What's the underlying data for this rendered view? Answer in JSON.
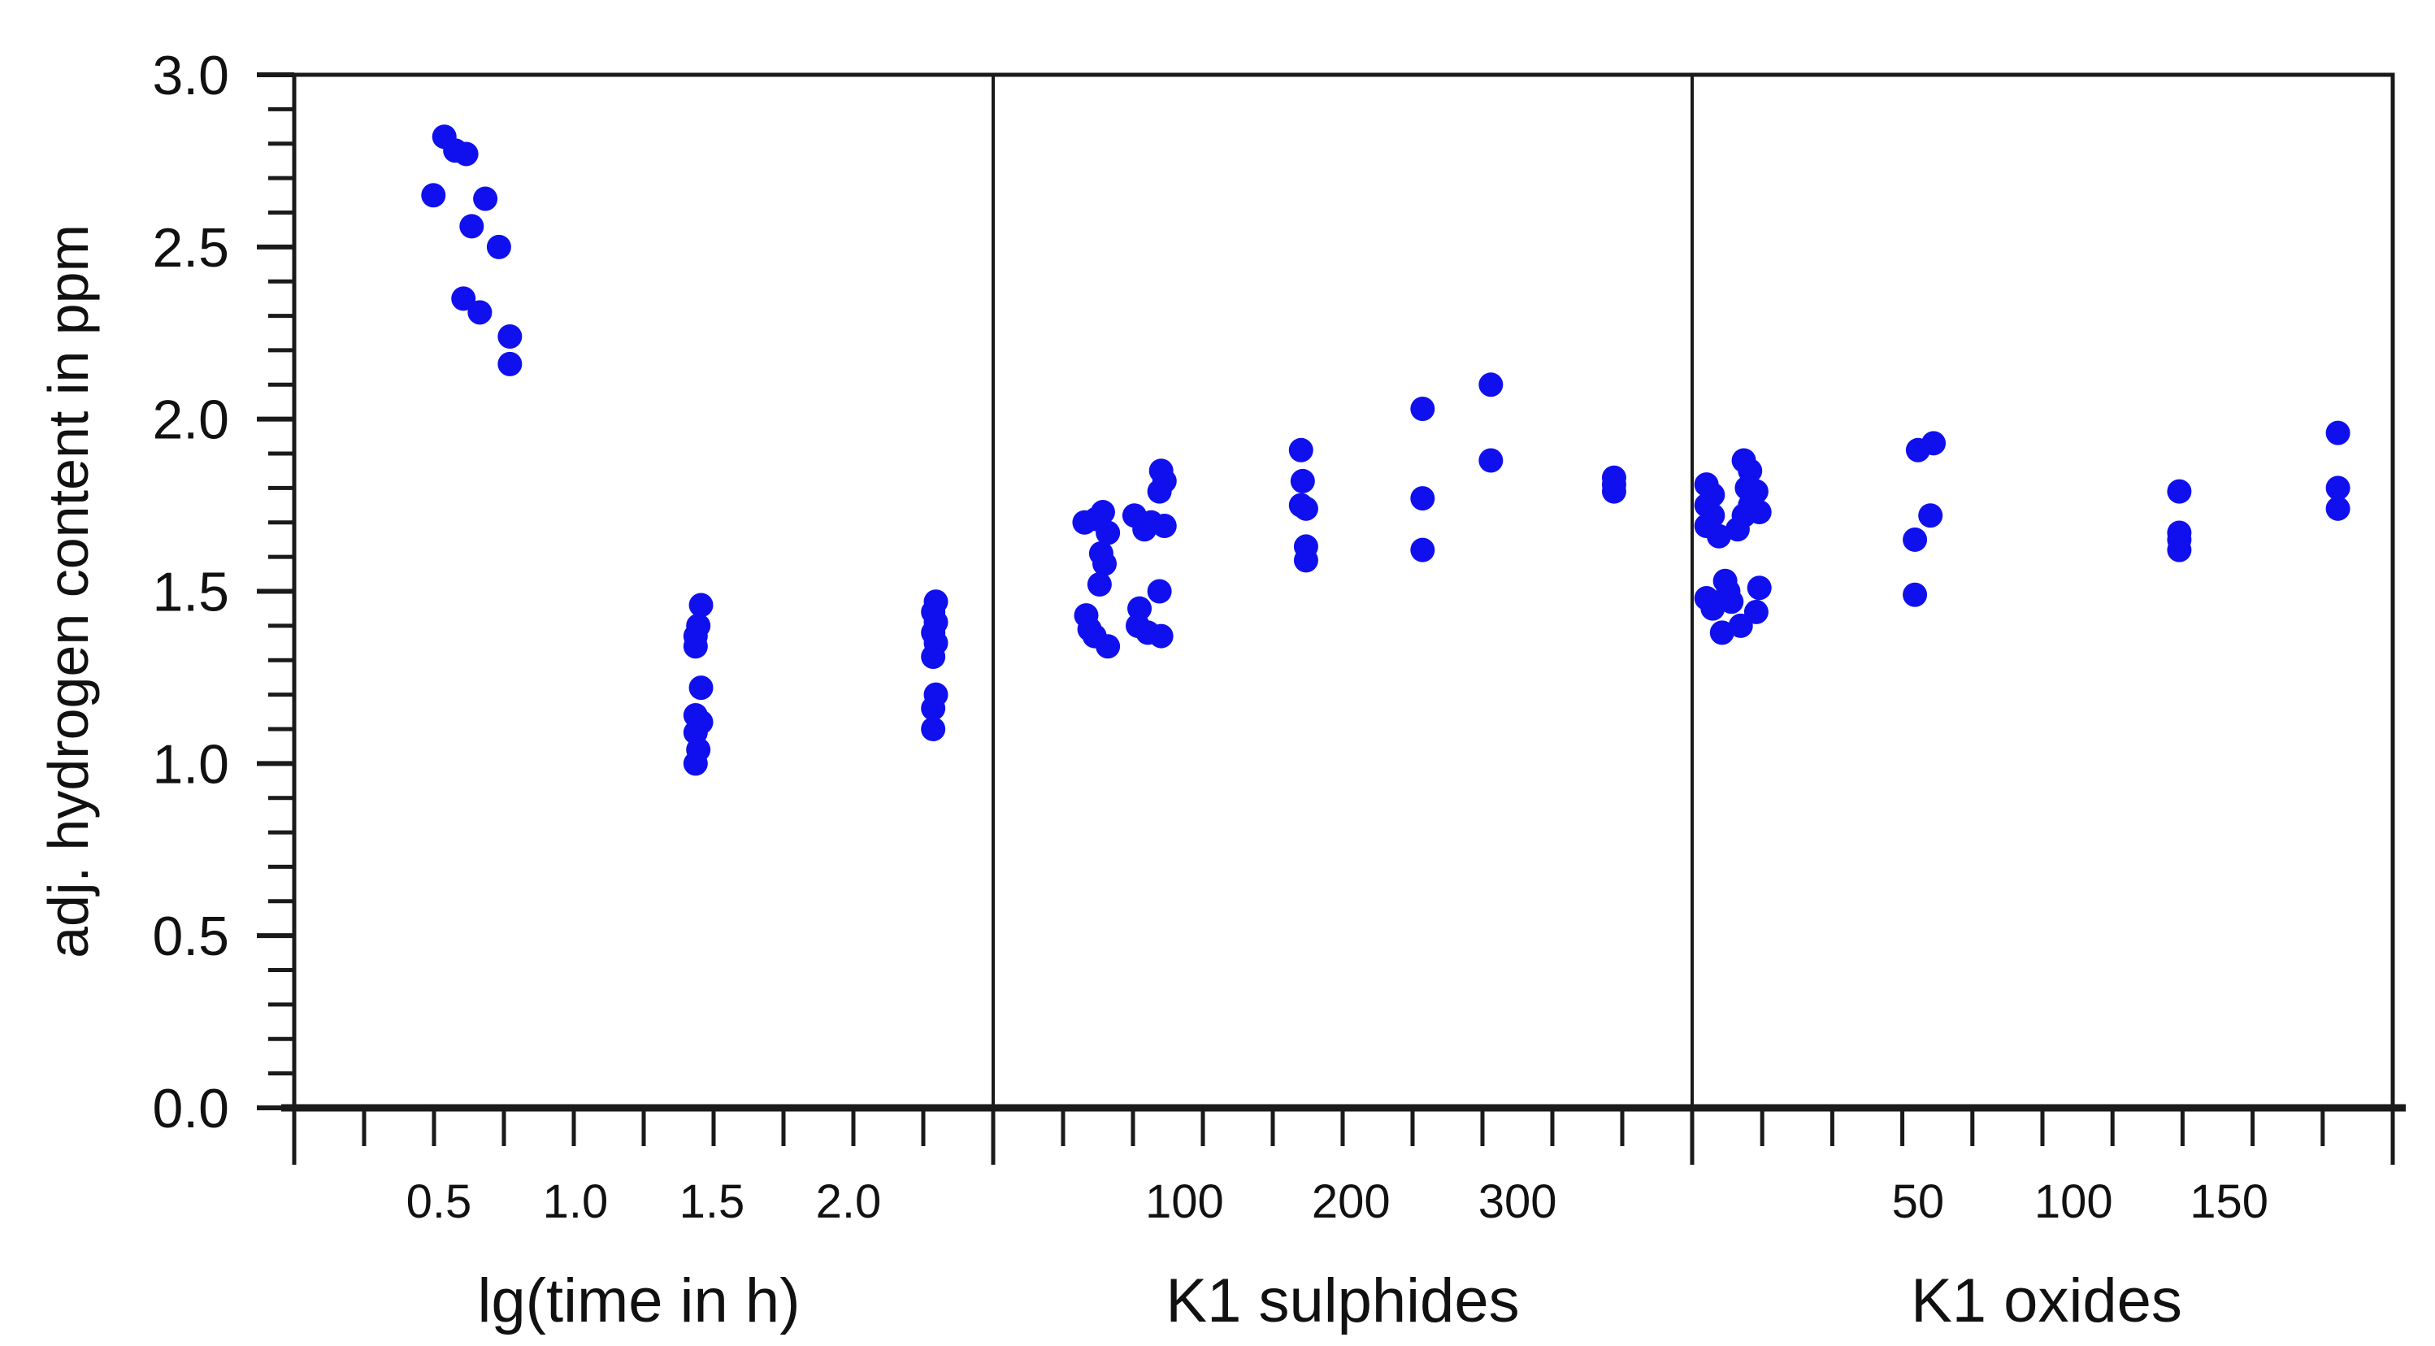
{
  "colors": {
    "points": "#1010ee",
    "axes": "#1a1a1a",
    "background": "#ffffff"
  },
  "chart_data": {
    "type": "scatter",
    "ylabel": "adj. hydrogen content in ppm",
    "ylim": [
      0,
      3.0
    ],
    "y_ticks": [
      "0.0",
      "0.5",
      "1.0",
      "1.5",
      "2.0",
      "2.5",
      "3.0"
    ],
    "grid": false,
    "legend": "none",
    "panels": [
      {
        "xlabel": "lg(time in h)",
        "x_ticks": [
          "0.5",
          "1.0",
          "1.5",
          "2.0"
        ],
        "xlim": [
          0,
          2.5
        ],
        "points": [
          [
            0.48,
            2.65
          ],
          [
            0.52,
            2.82
          ],
          [
            0.56,
            2.78
          ],
          [
            0.6,
            2.77
          ],
          [
            0.67,
            2.64
          ],
          [
            0.62,
            2.56
          ],
          [
            0.72,
            2.5
          ],
          [
            0.59,
            2.35
          ],
          [
            0.65,
            2.31
          ],
          [
            0.76,
            2.24
          ],
          [
            0.76,
            2.16
          ],
          [
            1.46,
            1.46
          ],
          [
            1.45,
            1.4
          ],
          [
            1.44,
            1.37
          ],
          [
            1.44,
            1.34
          ],
          [
            1.46,
            1.22
          ],
          [
            1.44,
            1.14
          ],
          [
            1.46,
            1.12
          ],
          [
            1.44,
            1.09
          ],
          [
            1.45,
            1.04
          ],
          [
            1.44,
            1.0
          ],
          [
            2.32,
            1.47
          ],
          [
            2.31,
            1.44
          ],
          [
            2.32,
            1.41
          ],
          [
            2.31,
            1.38
          ],
          [
            2.32,
            1.35
          ],
          [
            2.31,
            1.31
          ],
          [
            2.32,
            1.2
          ],
          [
            2.31,
            1.16
          ],
          [
            2.31,
            1.1
          ]
        ]
      },
      {
        "xlabel": "K1 sulphides",
        "x_ticks": [
          "100",
          "200",
          "300"
        ],
        "xlim": [
          -10,
          400
        ],
        "points": [
          [
            40,
            1.7
          ],
          [
            47,
            1.71
          ],
          [
            51,
            1.73
          ],
          [
            54,
            1.67
          ],
          [
            50,
            1.61
          ],
          [
            52,
            1.58
          ],
          [
            49,
            1.52
          ],
          [
            41,
            1.43
          ],
          [
            43,
            1.39
          ],
          [
            46,
            1.37
          ],
          [
            54,
            1.34
          ],
          [
            70,
            1.72
          ],
          [
            80,
            1.7
          ],
          [
            76,
            1.68
          ],
          [
            86,
            1.85
          ],
          [
            88,
            1.82
          ],
          [
            85,
            1.79
          ],
          [
            88,
            1.69
          ],
          [
            85,
            1.5
          ],
          [
            73,
            1.45
          ],
          [
            72,
            1.4
          ],
          [
            78,
            1.38
          ],
          [
            86,
            1.37
          ],
          [
            170,
            1.91
          ],
          [
            171,
            1.82
          ],
          [
            170,
            1.75
          ],
          [
            173,
            1.74
          ],
          [
            173,
            1.63
          ],
          [
            173,
            1.59
          ],
          [
            243,
            2.03
          ],
          [
            243,
            1.77
          ],
          [
            243,
            1.62
          ],
          [
            284,
            2.1
          ],
          [
            284,
            1.88
          ],
          [
            358,
            1.83
          ],
          [
            358,
            1.81
          ],
          [
            358,
            1.79
          ]
        ]
      },
      {
        "xlabel": "K1 oxides",
        "x_ticks": [
          "50",
          "100",
          "150"
        ],
        "xlim": [
          -20,
          200
        ],
        "points": [
          [
            -18,
            1.81
          ],
          [
            -16,
            1.78
          ],
          [
            -18,
            1.75
          ],
          [
            -16,
            1.72
          ],
          [
            -18,
            1.69
          ],
          [
            -14,
            1.66
          ],
          [
            -18,
            1.48
          ],
          [
            -16,
            1.45
          ],
          [
            -12,
            1.53
          ],
          [
            -11,
            1.5
          ],
          [
            -10,
            1.47
          ],
          [
            -13,
            1.38
          ],
          [
            -6,
            1.88
          ],
          [
            -4,
            1.85
          ],
          [
            -5,
            1.8
          ],
          [
            -2,
            1.79
          ],
          [
            -4,
            1.75
          ],
          [
            -6,
            1.72
          ],
          [
            -8,
            1.68
          ],
          [
            -1,
            1.73
          ],
          [
            -1,
            1.51
          ],
          [
            -2,
            1.44
          ],
          [
            -7,
            1.4
          ],
          [
            50,
            1.91
          ],
          [
            55,
            1.93
          ],
          [
            54,
            1.72
          ],
          [
            49,
            1.65
          ],
          [
            49,
            1.49
          ],
          [
            134,
            1.79
          ],
          [
            134,
            1.67
          ],
          [
            134,
            1.65
          ],
          [
            134,
            1.62
          ],
          [
            185,
            1.96
          ],
          [
            185,
            1.8
          ],
          [
            185,
            1.74
          ]
        ]
      }
    ]
  }
}
